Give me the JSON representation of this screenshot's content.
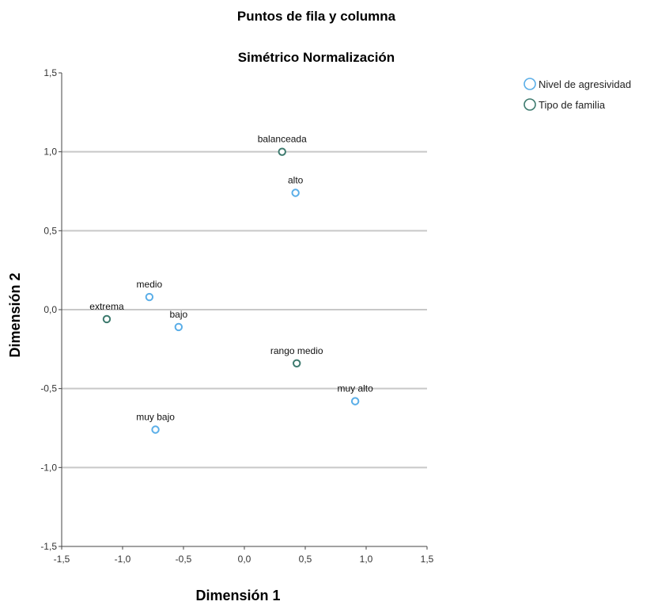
{
  "chart_data": {
    "type": "scatter",
    "title": "Puntos de fila y columna",
    "subtitle": "Simétrico Normalización",
    "xlabel": "Dimensión 1",
    "ylabel": "Dimensión 2",
    "xlim": [
      -1.5,
      1.5
    ],
    "ylim": [
      -1.5,
      1.5
    ],
    "x_ticks": [
      -1.5,
      -1.0,
      -0.5,
      0.0,
      0.5,
      1.0,
      1.5
    ],
    "y_ticks": [
      -1.5,
      -1.0,
      -0.5,
      0.0,
      0.5,
      1.0,
      1.5
    ],
    "x_tick_labels": [
      "-1,5",
      "-1,0",
      "-0,5",
      "0,0",
      "0,5",
      "1,0",
      "1,5"
    ],
    "y_tick_labels": [
      "-1,5",
      "-1,0",
      "-0,5",
      "0,0",
      "0,5",
      "1,0",
      "1,5"
    ],
    "grid": "horizontal",
    "legend_position": "top-right",
    "series": [
      {
        "name": "Nivel de agresividad",
        "color": "#5aaee8",
        "points": [
          {
            "label": "alto",
            "x": 0.42,
            "y": 0.74
          },
          {
            "label": "medio",
            "x": -0.78,
            "y": 0.08
          },
          {
            "label": "bajo",
            "x": -0.54,
            "y": -0.11
          },
          {
            "label": "muy alto",
            "x": 0.91,
            "y": -0.58
          },
          {
            "label": "muy bajo",
            "x": -0.73,
            "y": -0.76
          }
        ]
      },
      {
        "name": "Tipo de familia",
        "color": "#3d7a6e",
        "points": [
          {
            "label": "balanceada",
            "x": 0.31,
            "y": 1.0
          },
          {
            "label": "extrema",
            "x": -1.13,
            "y": -0.06
          },
          {
            "label": "rango medio",
            "x": 0.43,
            "y": -0.34
          }
        ]
      }
    ]
  }
}
